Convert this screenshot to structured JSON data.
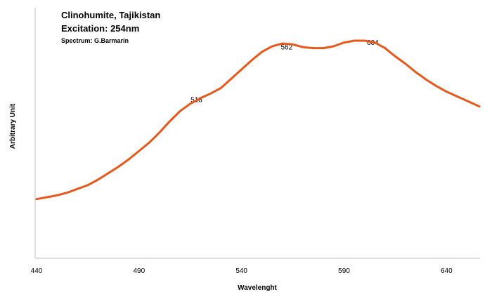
{
  "chart_data": {
    "type": "line",
    "title_lines": [
      "Clinohumite, Tajikistan",
      "Excitation: 254nm"
    ],
    "credit": "Spectrum: G.Barmarin",
    "xlabel": "Wavelenght",
    "ylabel": "Arbitrary Unit",
    "x_ticks": [
      "440",
      "490",
      "540",
      "590",
      "640"
    ],
    "x_tick_values": [
      440,
      490,
      540,
      590,
      640
    ],
    "xlim": [
      440,
      656
    ],
    "ylim": [
      0,
      100
    ],
    "y_axis_ticks_shown": false,
    "grid": false,
    "legend": "none",
    "line_color": "#E8581C",
    "annotations": [
      {
        "text": "518",
        "x": 518,
        "y": 63
      },
      {
        "text": "562",
        "x": 562,
        "y": 91.5
      },
      {
        "text": "604",
        "x": 604,
        "y": 94
      }
    ],
    "series": [
      {
        "x": [
          440,
          445,
          450,
          455,
          460,
          465,
          470,
          475,
          480,
          485,
          490,
          495,
          500,
          505,
          510,
          515,
          520,
          525,
          530,
          535,
          540,
          545,
          550,
          555,
          560,
          565,
          570,
          575,
          580,
          585,
          590,
          595,
          600,
          605,
          610,
          615,
          620,
          625,
          630,
          635,
          640,
          645,
          650,
          656
        ],
        "values": [
          14.5,
          15.5,
          16.5,
          18,
          20,
          22,
          25,
          28.5,
          32,
          36,
          40.5,
          45,
          50.5,
          56.5,
          62,
          66,
          69,
          71.5,
          74.5,
          79.5,
          84.5,
          89.5,
          94,
          97,
          98.5,
          98,
          96.5,
          96,
          96,
          97,
          99,
          100,
          100,
          99,
          96,
          91.5,
          87.5,
          83,
          79,
          75.5,
          72.5,
          70,
          67.5,
          64.5
        ]
      }
    ]
  }
}
